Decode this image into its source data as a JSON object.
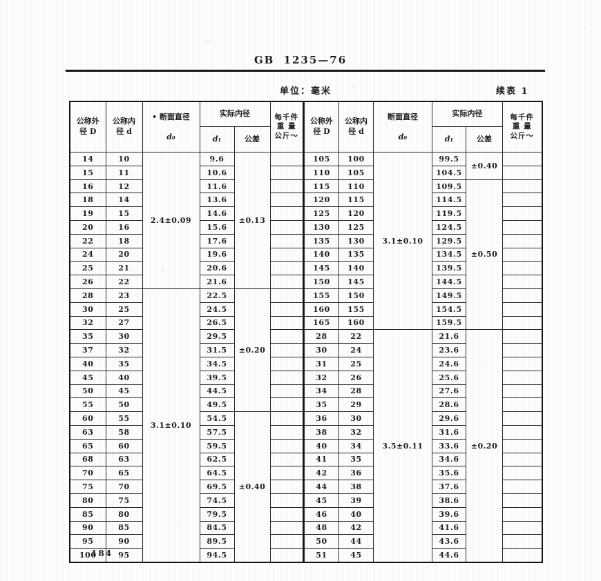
{
  "page": {
    "standard_code": "GB 1235—76",
    "unit_label": "单位：毫米",
    "continuation_label": "续表 1",
    "page_number": "184"
  },
  "table": {
    "headers": {
      "outer_d": "公称外\n径 D",
      "inner_d": "公称内\n径 d",
      "section_d_left": "• 断面直径",
      "section_d_right": "断面直径",
      "section_d_sub": "d₀",
      "actual_inner": "实际内径",
      "d1_sub": "d₁",
      "tolerance": "公差",
      "weight": "每千件\n重 量\n公斤～"
    },
    "left": {
      "rows": [
        [
          "14",
          "10",
          "9.6"
        ],
        [
          "15",
          "11",
          "10.6"
        ],
        [
          "16",
          "12",
          "11.6"
        ],
        [
          "18",
          "14",
          "13.6"
        ],
        [
          "19",
          "15",
          "14.6"
        ],
        [
          "20",
          "16",
          "15.6"
        ],
        [
          "22",
          "18",
          "17.6"
        ],
        [
          "24",
          "20",
          "19.6"
        ],
        [
          "25",
          "21",
          "20.6"
        ],
        [
          "26",
          "22",
          "21.6"
        ],
        [
          "28",
          "23",
          "22.5"
        ],
        [
          "30",
          "25",
          "24.5"
        ],
        [
          "32",
          "27",
          "26.5"
        ],
        [
          "35",
          "30",
          "29.5"
        ],
        [
          "37",
          "32",
          "31.5"
        ],
        [
          "40",
          "35",
          "34.5"
        ],
        [
          "45",
          "40",
          "39.5"
        ],
        [
          "50",
          "45",
          "44.5"
        ],
        [
          "55",
          "50",
          "49.5"
        ],
        [
          "60",
          "55",
          "54.5"
        ],
        [
          "63",
          "58",
          "57.5"
        ],
        [
          "65",
          "60",
          "59.5"
        ],
        [
          "68",
          "63",
          "62.5"
        ],
        [
          "70",
          "65",
          "64.5"
        ],
        [
          "75",
          "70",
          "69.5"
        ],
        [
          "80",
          "75",
          "74.5"
        ],
        [
          "85",
          "80",
          "79.5"
        ],
        [
          "90",
          "85",
          "84.5"
        ],
        [
          "95",
          "90",
          "89.5"
        ],
        [
          "100",
          "95",
          "94.5"
        ]
      ],
      "d0_groups": [
        {
          "label": "2.4±0.09",
          "span": 10
        },
        {
          "label": "3.1±0.10",
          "span": 20
        }
      ],
      "tol_groups": [
        {
          "label": "±0.13",
          "span": 10
        },
        {
          "label": "±0.20",
          "span": 9
        },
        {
          "label": "±0.40",
          "span": 11
        }
      ]
    },
    "right": {
      "rows": [
        [
          "105",
          "100",
          "99.5"
        ],
        [
          "110",
          "105",
          "104.5"
        ],
        [
          "115",
          "110",
          "109.5"
        ],
        [
          "120",
          "115",
          "114.5"
        ],
        [
          "125",
          "120",
          "119.5"
        ],
        [
          "130",
          "125",
          "124.5"
        ],
        [
          "135",
          "130",
          "129.5"
        ],
        [
          "140",
          "135",
          "134.5"
        ],
        [
          "145",
          "140",
          "139.5"
        ],
        [
          "150",
          "145",
          "144.5"
        ],
        [
          "155",
          "150",
          "149.5"
        ],
        [
          "160",
          "155",
          "154.5"
        ],
        [
          "165",
          "160",
          "159.5"
        ],
        [
          "28",
          "22",
          "21.6"
        ],
        [
          "30",
          "24",
          "23.6"
        ],
        [
          "31",
          "25",
          "24.6"
        ],
        [
          "32",
          "26",
          "25.6"
        ],
        [
          "34",
          "28",
          "27.6"
        ],
        [
          "35",
          "29",
          "28.6"
        ],
        [
          "36",
          "30",
          "29.6"
        ],
        [
          "38",
          "32",
          "31.6"
        ],
        [
          "40",
          "34",
          "33.6"
        ],
        [
          "41",
          "35",
          "34.6"
        ],
        [
          "42",
          "36",
          "35.6"
        ],
        [
          "44",
          "38",
          "37.6"
        ],
        [
          "45",
          "39",
          "38.6"
        ],
        [
          "46",
          "40",
          "39.6"
        ],
        [
          "48",
          "42",
          "41.6"
        ],
        [
          "50",
          "44",
          "43.6"
        ],
        [
          "51",
          "45",
          "44.6"
        ]
      ],
      "d0_groups": [
        {
          "label": "3.1±0.10",
          "span": 13
        },
        {
          "label": "3.5±0.11",
          "span": 17
        }
      ],
      "tol_groups": [
        {
          "label": "±0.40",
          "span": 2
        },
        {
          "label": "±0.50",
          "span": 11
        },
        {
          "label": "±0.20",
          "span": 17
        }
      ]
    }
  }
}
